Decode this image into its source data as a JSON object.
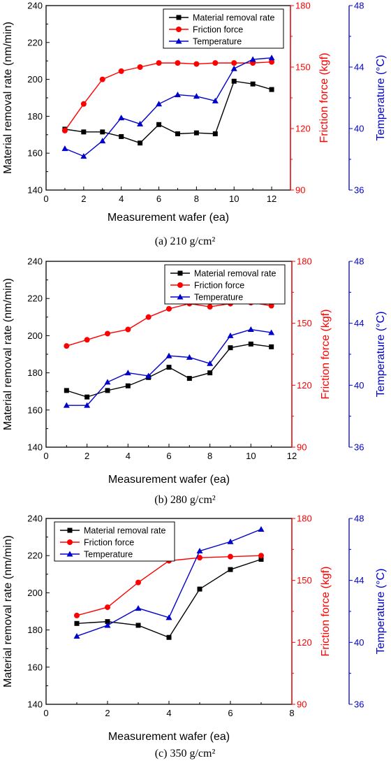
{
  "chart_data": [
    {
      "type": "line",
      "caption": "(a)  210 g/cm²",
      "xlabel": "Measurement wafer (ea)",
      "xlim": [
        0,
        13
      ],
      "xticks": [
        0,
        2,
        4,
        6,
        8,
        10,
        12
      ],
      "axes": {
        "left": {
          "label": "Material removal rate (nm/min)",
          "lim": [
            140,
            240
          ],
          "ticks": [
            140,
            160,
            180,
            200,
            220,
            240
          ],
          "color": "#000000"
        },
        "right1": {
          "label": "Friction force (kgf)",
          "lim": [
            90,
            180
          ],
          "ticks": [
            90,
            120,
            150,
            180
          ],
          "color": "#ff0000"
        },
        "right2": {
          "label": "Temperature (°C)",
          "lim": [
            36,
            48
          ],
          "ticks": [
            36,
            40,
            44,
            48
          ],
          "color": "#0000cc"
        }
      },
      "legend_position": "top-right",
      "series": [
        {
          "name": "Material removal rate",
          "axis": "left",
          "marker": "square",
          "color": "#000000",
          "x": [
            1,
            2,
            3,
            4,
            5,
            6,
            7,
            8,
            9,
            10,
            11,
            12
          ],
          "y": [
            173,
            171.5,
            171.5,
            169,
            165.5,
            175.5,
            170.5,
            171,
            170.5,
            199,
            197.5,
            194.5
          ]
        },
        {
          "name": "Friction force",
          "axis": "right1",
          "marker": "circle",
          "color": "#ff0000",
          "x": [
            1,
            2,
            3,
            4,
            5,
            6,
            7,
            8,
            9,
            10,
            11,
            12
          ],
          "y": [
            119,
            132,
            144,
            148,
            150,
            152,
            152,
            151.5,
            152,
            152,
            152,
            152.5
          ]
        },
        {
          "name": "Temperature",
          "axis": "right2",
          "marker": "triangle",
          "color": "#0000cc",
          "x": [
            1,
            2,
            3,
            4,
            5,
            6,
            7,
            8,
            9,
            10,
            11,
            12
          ],
          "y": [
            38.7,
            38.2,
            39.2,
            40.7,
            40.3,
            41.6,
            42.2,
            42.1,
            41.8,
            43.9,
            44.5,
            44.6
          ]
        }
      ]
    },
    {
      "type": "line",
      "caption": "(b)  280 g/cm²",
      "xlabel": "Measurement wafer (ea)",
      "xlim": [
        0,
        12
      ],
      "xticks": [
        0,
        2,
        4,
        6,
        8,
        10,
        12
      ],
      "axes": {
        "left": {
          "label": "Material removal rate (nm/min)",
          "lim": [
            140,
            240
          ],
          "ticks": [
            140,
            160,
            180,
            200,
            220,
            240
          ],
          "color": "#000000"
        },
        "right1": {
          "label": "Friction force (kgf)",
          "lim": [
            90,
            180
          ],
          "ticks": [
            90,
            120,
            150,
            180
          ],
          "color": "#ff0000"
        },
        "right2": {
          "label": "Temperature (°C)",
          "lim": [
            36,
            48
          ],
          "ticks": [
            36,
            40,
            44,
            48
          ],
          "color": "#0000cc"
        }
      },
      "legend_position": "top-right",
      "series": [
        {
          "name": "Material removal rate",
          "axis": "left",
          "marker": "square",
          "color": "#000000",
          "x": [
            1,
            2,
            3,
            4,
            5,
            6,
            7,
            8,
            9,
            10,
            11
          ],
          "y": [
            170.5,
            167,
            170.5,
            173,
            177.5,
            183,
            177,
            180,
            193.5,
            195.5,
            194
          ]
        },
        {
          "name": "Friction force",
          "axis": "right1",
          "marker": "circle",
          "color": "#ff0000",
          "x": [
            1,
            2,
            3,
            4,
            5,
            6,
            7,
            8,
            9,
            10,
            11
          ],
          "y": [
            139,
            142,
            145,
            147,
            153,
            157,
            159.5,
            158,
            159.5,
            160,
            158.5
          ]
        },
        {
          "name": "Temperature",
          "axis": "right2",
          "marker": "triangle",
          "color": "#0000cc",
          "x": [
            1,
            2,
            3,
            4,
            5,
            6,
            7,
            8,
            9,
            10,
            11
          ],
          "y": [
            38.7,
            38.7,
            40.2,
            40.8,
            40.6,
            41.9,
            41.8,
            41.4,
            43.2,
            43.6,
            43.4
          ]
        }
      ]
    },
    {
      "type": "line",
      "caption": "(c)  350 g/cm²",
      "xlabel": "Measurement wafer (ea)",
      "xlim": [
        0,
        8
      ],
      "xticks": [
        0,
        2,
        4,
        6,
        8
      ],
      "axes": {
        "left": {
          "label": "Material removal rate (nm/min)",
          "lim": [
            140,
            240
          ],
          "ticks": [
            140,
            160,
            180,
            200,
            220,
            240
          ],
          "color": "#000000"
        },
        "right1": {
          "label": "Friction force (kgf)",
          "lim": [
            90,
            180
          ],
          "ticks": [
            90,
            120,
            150,
            180
          ],
          "color": "#ff0000"
        },
        "right2": {
          "label": "Temperature (°C)",
          "lim": [
            36,
            48
          ],
          "ticks": [
            36,
            40,
            44,
            48
          ],
          "color": "#0000cc"
        }
      },
      "legend_position": "top-left",
      "series": [
        {
          "name": "Material removal rate",
          "axis": "left",
          "marker": "square",
          "color": "#000000",
          "x": [
            1,
            2,
            3,
            4,
            5,
            6,
            7
          ],
          "y": [
            183.5,
            184.5,
            182.5,
            176,
            202,
            212.5,
            218
          ]
        },
        {
          "name": "Friction force",
          "axis": "right1",
          "marker": "circle",
          "color": "#ff0000",
          "x": [
            1,
            2,
            3,
            4,
            5,
            6,
            7
          ],
          "y": [
            133,
            137,
            149,
            159.5,
            161,
            161.5,
            162
          ]
        },
        {
          "name": "Temperature",
          "axis": "right2",
          "marker": "triangle",
          "color": "#0000cc",
          "x": [
            1,
            2,
            3,
            4,
            5,
            6,
            7
          ],
          "y": [
            40.4,
            41.1,
            42.2,
            41.6,
            45.9,
            46.5,
            47.3
          ]
        }
      ]
    }
  ]
}
